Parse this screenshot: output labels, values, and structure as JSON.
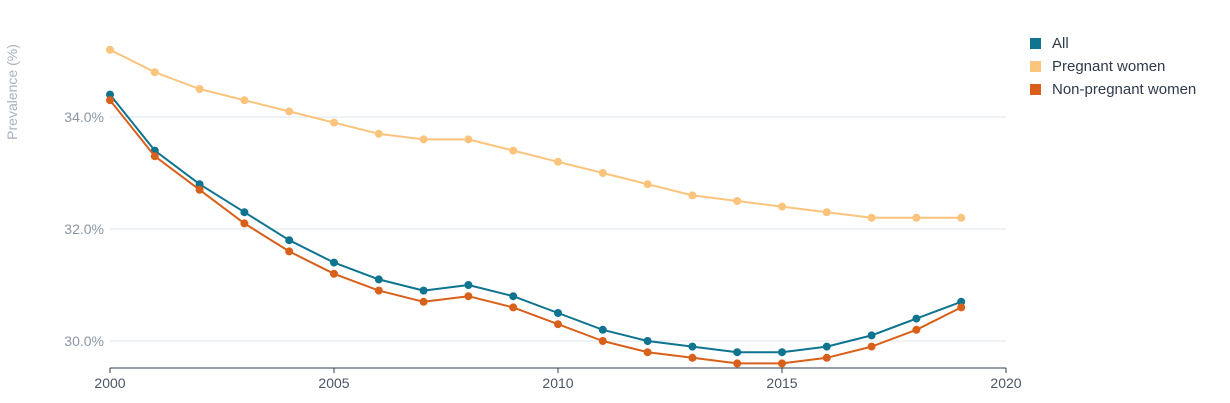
{
  "chart_data": {
    "type": "line",
    "ylabel": "Prevalence (%)",
    "xlabel": "",
    "x": [
      2000,
      2001,
      2002,
      2003,
      2004,
      2005,
      2006,
      2007,
      2008,
      2009,
      2010,
      2011,
      2012,
      2013,
      2014,
      2015,
      2016,
      2017,
      2018,
      2019
    ],
    "xlim": [
      2000,
      2020
    ],
    "x_ticks": [
      "2000",
      "2005",
      "2010",
      "2015",
      "2020"
    ],
    "ylim": [
      29.5,
      35.5
    ],
    "y_ticks": [
      "30.0%",
      "32.0%",
      "34.0%"
    ],
    "grid": "horizontal",
    "legend_position": "right",
    "series": [
      {
        "name": "All",
        "color": "#0e7490",
        "values": [
          34.4,
          33.4,
          32.8,
          32.3,
          31.8,
          31.4,
          31.1,
          30.9,
          31.0,
          30.8,
          30.5,
          30.2,
          30.0,
          29.9,
          29.8,
          29.8,
          29.9,
          30.1,
          30.4,
          30.7
        ]
      },
      {
        "name": "Pregnant women",
        "color": "#fac47d",
        "values": [
          35.2,
          34.8,
          34.5,
          34.3,
          34.1,
          33.9,
          33.7,
          33.6,
          33.6,
          33.4,
          33.2,
          33.0,
          32.8,
          32.6,
          32.5,
          32.4,
          32.3,
          32.2,
          32.2,
          32.2
        ]
      },
      {
        "name": "Non-pregnant women",
        "color": "#d9601a",
        "values": [
          34.3,
          33.3,
          32.7,
          32.1,
          31.6,
          31.2,
          30.9,
          30.7,
          30.8,
          30.6,
          30.3,
          30.0,
          29.8,
          29.7,
          29.6,
          29.6,
          29.7,
          29.9,
          30.2,
          30.6
        ]
      }
    ]
  }
}
